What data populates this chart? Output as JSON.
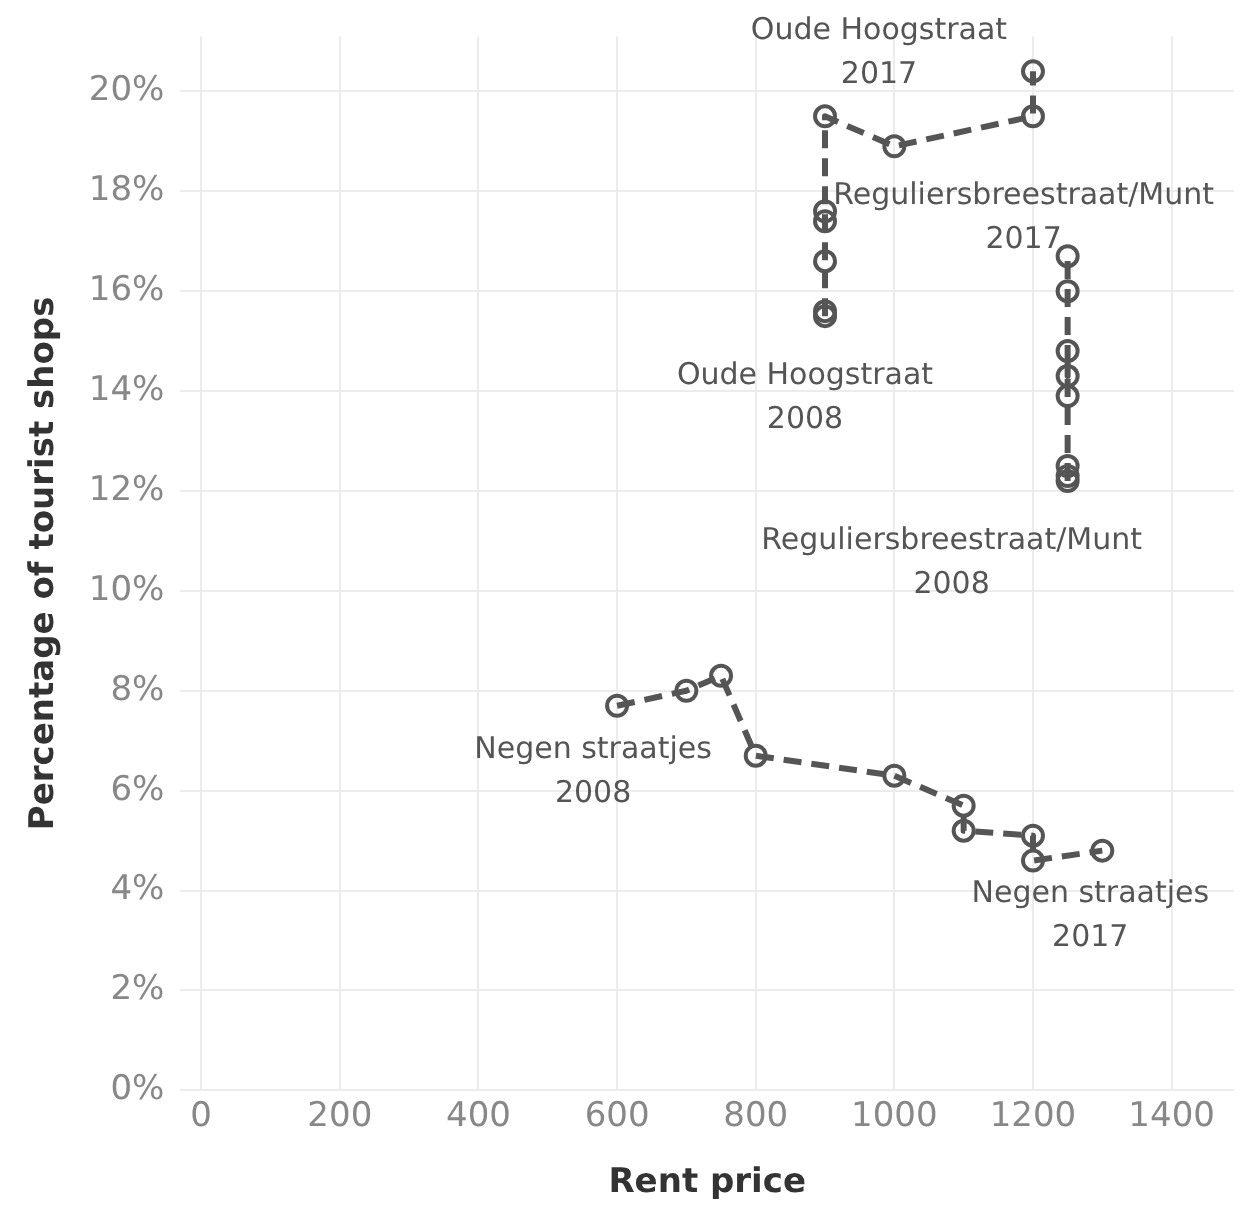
{
  "chart_data": {
    "type": "line",
    "xlabel": "Rent price",
    "ylabel": "Percentage of tourist shops",
    "xlim": [
      -30,
      1490
    ],
    "xticks": [
      0,
      200,
      400,
      600,
      800,
      1000,
      1200,
      1400
    ],
    "ylim": [
      0,
      21.1
    ],
    "yticks": [
      {
        "value": 0,
        "label": "0%"
      },
      {
        "value": 2,
        "label": "2%"
      },
      {
        "value": 4,
        "label": "4%"
      },
      {
        "value": 6,
        "label": "6%"
      },
      {
        "value": 8,
        "label": "8%"
      },
      {
        "value": 10,
        "label": "10%"
      },
      {
        "value": 12,
        "label": "12%"
      },
      {
        "value": 14,
        "label": "14%"
      },
      {
        "value": 16,
        "label": "16%"
      },
      {
        "value": 18,
        "label": "18%"
      },
      {
        "value": 20,
        "label": "20%"
      }
    ],
    "grid": true,
    "legend": false,
    "marker": "circle",
    "line_style": "dashed",
    "series": [
      {
        "color": "#555555",
        "x": [
          900,
          900,
          900,
          900,
          900,
          900,
          1000,
          1200,
          1200
        ],
        "values": [
          15.5,
          15.6,
          16.6,
          17.4,
          17.6,
          19.5,
          18.9,
          19.5,
          20.4
        ]
      },
      {
        "color": "#555555",
        "x": [
          1250,
          1250,
          1250,
          1250,
          1250,
          1250,
          1250,
          1250
        ],
        "values": [
          12.2,
          12.3,
          12.5,
          13.9,
          14.8,
          14.3,
          16.0,
          16.7
        ]
      },
      {
        "color": "#555555",
        "x": [
          600,
          700,
          750,
          800,
          1000,
          1100,
          1100,
          1200,
          1200,
          1300
        ],
        "values": [
          7.7,
          8.0,
          8.3,
          6.7,
          6.3,
          5.7,
          5.2,
          5.1,
          4.6,
          4.8
        ]
      }
    ],
    "annotations": [
      {
        "text": "Oude Hoogstraat\n2017",
        "x": 1200,
        "y": 20.4
      },
      {
        "text": "Oude Hoogstraat\n2008",
        "x": 900,
        "y": 15.5
      },
      {
        "text": "Reguliersbreestraat/Munt\n2017",
        "x": 1250,
        "y": 16.7
      },
      {
        "text": "Reguliersbreestraat/Munt\n2008",
        "x": 1250,
        "y": 12.2
      },
      {
        "text": "Negen straatjes\n2008",
        "x": 600,
        "y": 7.7
      },
      {
        "text": "Negen straatjes\n2017",
        "x": 1300,
        "y": 4.8
      }
    ]
  }
}
